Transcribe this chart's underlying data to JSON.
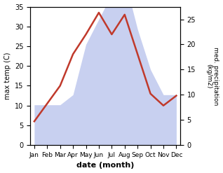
{
  "months": [
    "Jan",
    "Feb",
    "Mar",
    "Apr",
    "May",
    "Jun",
    "Jul",
    "Aug",
    "Sep",
    "Oct",
    "Nov",
    "Dec"
  ],
  "temperature": [
    6,
    10.5,
    15,
    23,
    28,
    33.5,
    28,
    33,
    23,
    13,
    10,
    12.5
  ],
  "precipitation": [
    8,
    8,
    8,
    10,
    20,
    25,
    30,
    33,
    23,
    15,
    10,
    10
  ],
  "temp_color": "#c0392b",
  "precip_fill_color": "#c8d0f0",
  "ylabel_left": "max temp (C)",
  "ylabel_right": "med. precipitation\n(kg/m2)",
  "xlabel": "date (month)",
  "ylim_left": [
    0,
    35
  ],
  "ylim_right": [
    0,
    27.5
  ],
  "background_color": "#ffffff"
}
